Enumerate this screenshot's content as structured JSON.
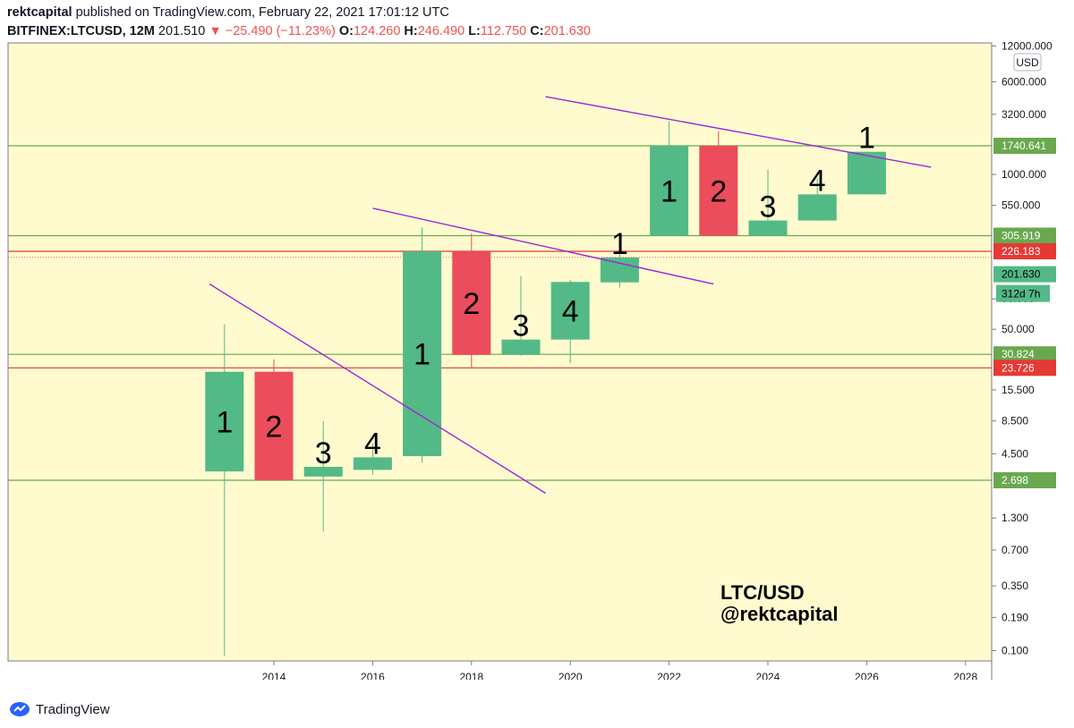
{
  "header": {
    "author": "rektcapital",
    "published_text": "published on TradingView.com, February 22, 2021 17:01:12 UTC",
    "symbol": "BITFINEX:LTCUSD, 12M",
    "last": "201.510",
    "change": "−25.490 (−11.23%)",
    "o_label": "O:",
    "o_val": "124.260",
    "h_label": "H:",
    "h_val": "246.490",
    "l_label": "L:",
    "l_val": "112.750",
    "c_label": "C:",
    "c_val": "201.630"
  },
  "footer": {
    "brand": "TradingView"
  },
  "chart_data": {
    "type": "candlestick",
    "y_scale": "log",
    "currency_badge": "USD",
    "y_ticks": [
      "12000.000",
      "6000.000",
      "3200.000",
      "1000.000",
      "550.000",
      "90.000",
      "50.000",
      "15.500",
      "8.500",
      "4.500",
      "1.300",
      "0.700",
      "0.350",
      "0.190",
      "0.100"
    ],
    "x_ticks": [
      "2014",
      "2016",
      "2018",
      "2020",
      "2022",
      "2024",
      "2026",
      "2028"
    ],
    "candles": [
      {
        "year": 2013,
        "open": 3.2,
        "high": 55,
        "low": 0.09,
        "close": 22,
        "label": "1",
        "color": "green"
      },
      {
        "year": 2014,
        "open": 22,
        "high": 28,
        "low": 2.7,
        "close": 2.7,
        "label": "2",
        "color": "red"
      },
      {
        "year": 2015,
        "open": 2.9,
        "high": 8.5,
        "low": 1.0,
        "close": 3.5,
        "label": "3",
        "color": "green"
      },
      {
        "year": 2016,
        "open": 3.3,
        "high": 5.5,
        "low": 3.0,
        "close": 4.2,
        "label": "4",
        "color": "green"
      },
      {
        "year": 2017,
        "open": 4.3,
        "high": 360,
        "low": 3.8,
        "close": 226,
        "label": "1",
        "color": "green"
      },
      {
        "year": 2018,
        "open": 226,
        "high": 320,
        "low": 24,
        "close": 30.5,
        "label": "2",
        "color": "red"
      },
      {
        "year": 2019,
        "open": 30.5,
        "high": 140,
        "low": 30,
        "close": 41,
        "label": "3",
        "color": "green"
      },
      {
        "year": 2020,
        "open": 41,
        "high": 130,
        "low": 26,
        "close": 125,
        "label": "4",
        "color": "green"
      },
      {
        "year": 2021,
        "open": 124,
        "high": 246,
        "low": 112,
        "close": 201,
        "label": "1",
        "color": "green"
      },
      {
        "year": 2022,
        "open": 305,
        "high": 2800,
        "low": 305,
        "close": 1740,
        "label": "1",
        "color": "green"
      },
      {
        "year": 2023,
        "open": 1740,
        "high": 2300,
        "low": 305,
        "close": 305,
        "label": "2",
        "color": "red"
      },
      {
        "year": 2024,
        "open": 305,
        "high": 1100,
        "low": 305,
        "close": 410,
        "label": "3",
        "color": "green"
      },
      {
        "year": 2025,
        "open": 410,
        "high": 930,
        "low": 410,
        "close": 680,
        "label": "4",
        "color": "green"
      },
      {
        "year": 2026,
        "open": 680,
        "high": 1550,
        "low": 680,
        "close": 1550,
        "label": "1",
        "color": "green"
      }
    ],
    "levels": [
      {
        "value": 1740.641,
        "label": "1740.641",
        "color": "green"
      },
      {
        "value": 305.919,
        "label": "305.919",
        "color": "green"
      },
      {
        "value": 226.183,
        "label": "226.183",
        "color": "red"
      },
      {
        "value": 30.824,
        "label": "30.824",
        "color": "green"
      },
      {
        "value": 23.726,
        "label": "23.726",
        "color": "red"
      },
      {
        "value": 2.698,
        "label": "2.698",
        "color": "green"
      }
    ],
    "price_marker": {
      "value": 201.63,
      "label": "201.630",
      "countdown": "312d 7h"
    },
    "trendlines": [
      {
        "from": [
          2012.7,
          120
        ],
        "to": [
          2019.5,
          2.1
        ]
      },
      {
        "from": [
          2016.0,
          520
        ],
        "to": [
          2022.9,
          120
        ]
      },
      {
        "from": [
          2019.5,
          4500
        ],
        "to": [
          2027.3,
          1150
        ]
      }
    ],
    "watermark": [
      "LTC/USD",
      "@rektcapital"
    ],
    "colors": {
      "up": "#53b987",
      "down": "#eb4d5c",
      "background": "#fffbcf",
      "trendline": "#9c27d9",
      "level_green": "#6aa84f",
      "level_red": "#e53935"
    }
  }
}
